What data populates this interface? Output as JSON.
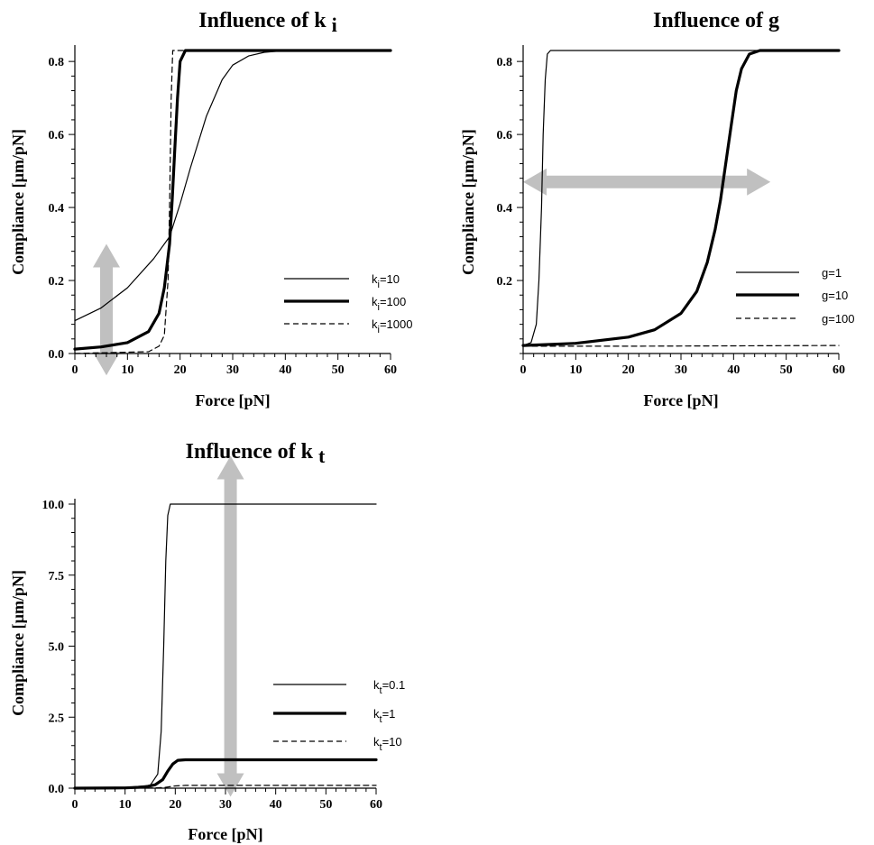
{
  "colors": {
    "curve": "#000000",
    "arrow": "#c0c0c0",
    "background": "#ffffff"
  },
  "chart_data": [
    {
      "type": "line",
      "title": "Influence of k",
      "title_sub": "i",
      "xlabel": "Force [pN]",
      "ylabel": "Compliance [µm/pN]",
      "xlim": [
        0,
        60
      ],
      "ylim": [
        0,
        0.83
      ],
      "xticks": [
        0,
        10,
        20,
        30,
        40,
        50,
        60
      ],
      "yticks": [
        0.0,
        0.2,
        0.4,
        0.6,
        0.8
      ],
      "ytick_labels": [
        "0.0",
        "0.2",
        "0.4",
        "0.6",
        "0.8"
      ],
      "grid": false,
      "legend_position": "bottom-right",
      "arrow": {
        "direction": "vertical",
        "from": [
          6,
          -0.06
        ],
        "to": [
          6,
          0.3
        ]
      },
      "series": [
        {
          "label_main": "k",
          "label_sub": "i",
          "label_rest": "=10",
          "line_style": "thin",
          "x": [
            0,
            5,
            10,
            15,
            18,
            20,
            22,
            25,
            28,
            30,
            33,
            36,
            40,
            60
          ],
          "y": [
            0.09,
            0.125,
            0.18,
            0.26,
            0.32,
            0.41,
            0.51,
            0.65,
            0.75,
            0.79,
            0.815,
            0.825,
            0.83,
            0.83
          ]
        },
        {
          "label_main": "k",
          "label_sub": "i",
          "label_rest": "=100",
          "line_style": "thick",
          "x": [
            0,
            5,
            10,
            14,
            16,
            17,
            18,
            18.5,
            19,
            19.5,
            20,
            21,
            60
          ],
          "y": [
            0.012,
            0.018,
            0.03,
            0.06,
            0.11,
            0.18,
            0.3,
            0.42,
            0.56,
            0.7,
            0.8,
            0.83,
            0.83
          ]
        },
        {
          "label_main": "k",
          "label_sub": "i",
          "label_rest": "=1000",
          "line_style": "dashed",
          "x": [
            0,
            14,
            16,
            17,
            17.7,
            18,
            18.3,
            18.6,
            19,
            60
          ],
          "y": [
            0.0,
            0.005,
            0.02,
            0.05,
            0.2,
            0.4,
            0.7,
            0.83,
            0.83,
            0.83
          ]
        }
      ]
    },
    {
      "type": "line",
      "title": "Influence of g",
      "xlabel": "Force [pN]",
      "ylabel": "Compliance [µm/pN]",
      "xlim": [
        0,
        60
      ],
      "ylim": [
        0,
        0.83
      ],
      "xticks": [
        0,
        10,
        20,
        30,
        40,
        50,
        60
      ],
      "yticks": [
        0.2,
        0.4,
        0.6,
        0.8
      ],
      "ytick_labels": [
        "0.2",
        "0.4",
        "0.6",
        "0.8"
      ],
      "grid": false,
      "legend_position": "bottom-right",
      "arrow": {
        "direction": "horizontal",
        "from": [
          0,
          0.47
        ],
        "to": [
          47,
          0.47
        ]
      },
      "series": [
        {
          "label_main": "g",
          "label_sub": "",
          "label_rest": "=1",
          "line_style": "thin",
          "x": [
            0,
            1.5,
            2.5,
            3.0,
            3.5,
            3.8,
            4.2,
            4.6,
            5.2,
            60
          ],
          "y": [
            0.022,
            0.03,
            0.08,
            0.2,
            0.4,
            0.6,
            0.75,
            0.82,
            0.83,
            0.83
          ]
        },
        {
          "label_main": "g",
          "label_sub": "",
          "label_rest": "=10",
          "line_style": "thick",
          "x": [
            0,
            10,
            20,
            25,
            30,
            33,
            35,
            36.5,
            37.5,
            38.5,
            39.5,
            40.5,
            41.5,
            43,
            45,
            60
          ],
          "y": [
            0.022,
            0.028,
            0.045,
            0.065,
            0.11,
            0.17,
            0.25,
            0.34,
            0.42,
            0.52,
            0.62,
            0.72,
            0.78,
            0.82,
            0.83,
            0.83
          ]
        },
        {
          "label_main": "g",
          "label_sub": "",
          "label_rest": "=100",
          "line_style": "dashed",
          "x": [
            0,
            20,
            40,
            60
          ],
          "y": [
            0.02,
            0.02,
            0.021,
            0.022
          ]
        }
      ]
    },
    {
      "type": "line",
      "title": "Influence of k",
      "title_sub": "t",
      "xlabel": "Force [pN]",
      "ylabel": "Compliance [µm/pN]",
      "xlim": [
        0,
        60
      ],
      "ylim": [
        0,
        10
      ],
      "xticks": [
        0,
        10,
        20,
        30,
        40,
        50,
        60
      ],
      "yticks": [
        0.0,
        2.5,
        5.0,
        7.5,
        10.0
      ],
      "ytick_labels": [
        "0.0",
        "2.5",
        "5.0",
        "7.5",
        "10.0"
      ],
      "grid": false,
      "legend_position": "bottom-right",
      "arrow": {
        "direction": "vertical",
        "from": [
          31,
          -0.3
        ],
        "to": [
          31,
          11.7
        ]
      },
      "series": [
        {
          "label_main": "k",
          "label_sub": "t",
          "label_rest": "=0.1",
          "line_style": "thin",
          "x": [
            0,
            10,
            15,
            16.5,
            17.2,
            17.7,
            18.1,
            18.5,
            19,
            60
          ],
          "y": [
            0.01,
            0.02,
            0.1,
            0.5,
            2.0,
            5.0,
            8.0,
            9.6,
            10.0,
            10.0
          ]
        },
        {
          "label_main": "k",
          "label_sub": "t",
          "label_rest": "=1",
          "line_style": "thick",
          "x": [
            0,
            10,
            14,
            16,
            17.5,
            18.5,
            19.5,
            20.5,
            22,
            60
          ],
          "y": [
            0.0,
            0.01,
            0.04,
            0.12,
            0.3,
            0.6,
            0.85,
            0.98,
            1.0,
            1.0
          ]
        },
        {
          "label_main": "k",
          "label_sub": "t",
          "label_rest": "=10",
          "line_style": "dashed",
          "x": [
            0,
            15,
            18,
            20,
            22,
            60
          ],
          "y": [
            0.0,
            0.002,
            0.03,
            0.08,
            0.1,
            0.1
          ]
        }
      ]
    }
  ]
}
